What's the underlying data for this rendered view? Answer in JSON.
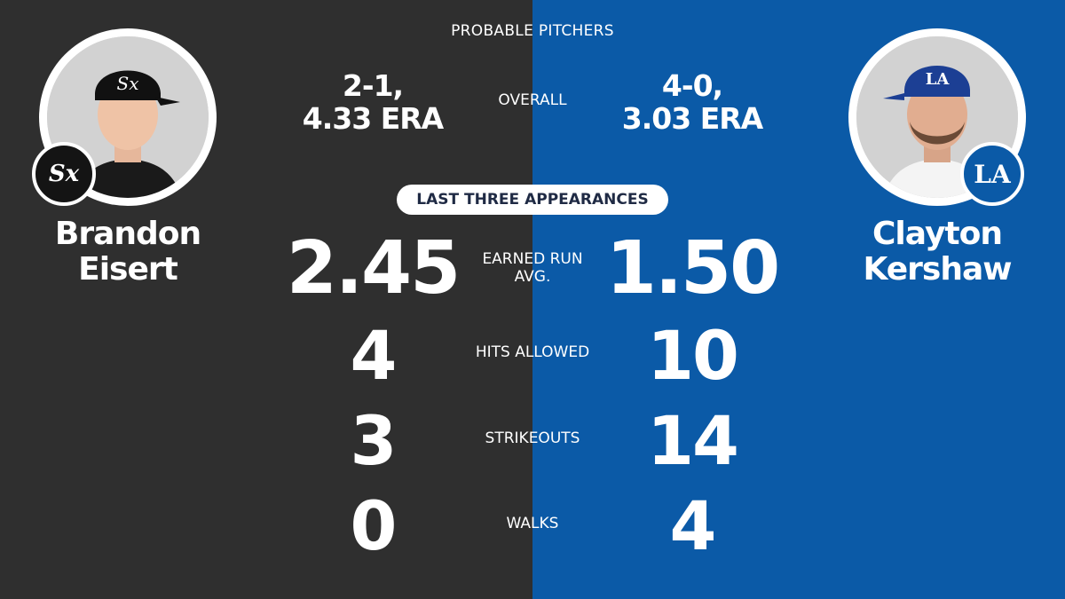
{
  "colors": {
    "left_bg": "#2f2f2f",
    "right_bg": "#0b5aa7",
    "white_sox_black": "#141414",
    "dodgers_blue": "#0b5aa7"
  },
  "header": {
    "title": "PROBABLE PITCHERS"
  },
  "overall": {
    "label": "OVERALL",
    "left_line1": "2-1,",
    "left_line2": "4.33 ERA",
    "right_line1": "4-0,",
    "right_line2": "3.03 ERA"
  },
  "section_pill": {
    "label": "LAST THREE APPEARANCES"
  },
  "left_player": {
    "first_name": "Brandon",
    "last_name": "Eisert",
    "team_logo": "white-sox-logo"
  },
  "right_player": {
    "first_name": "Clayton",
    "last_name": "Kershaw",
    "team_logo": "dodgers-logo"
  },
  "stats": [
    {
      "label_line1": "EARNED RUN",
      "label_line2": "AVG.",
      "left": "2.45",
      "right": "1.50"
    },
    {
      "label_line1": "HITS ALLOWED",
      "label_line2": "",
      "left": "4",
      "right": "10"
    },
    {
      "label_line1": "STRIKEOUTS",
      "label_line2": "",
      "left": "3",
      "right": "14"
    },
    {
      "label_line1": "WALKS",
      "label_line2": "",
      "left": "0",
      "right": "4"
    }
  ]
}
